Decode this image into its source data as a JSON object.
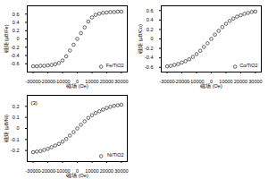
{
  "chart_data": [
    {
      "type": "scatter",
      "xlabel": "磁场 (Oe)",
      "ylabel": "磁矩 (μB/Fe)",
      "x": [
        -30000,
        -27500,
        -25000,
        -22500,
        -20000,
        -17500,
        -15000,
        -12500,
        -10000,
        -7500,
        -5000,
        -2500,
        0,
        2500,
        5000,
        7500,
        10000,
        12500,
        15000,
        17500,
        20000,
        22500,
        25000,
        27500,
        30000
      ],
      "series": [
        {
          "name": "Fe/TiO2",
          "color": "#000000",
          "marker": "circle",
          "values": [
            -0.66,
            -0.66,
            -0.65,
            -0.65,
            -0.64,
            -0.63,
            -0.61,
            -0.58,
            -0.52,
            -0.42,
            -0.28,
            -0.14,
            0.0,
            0.14,
            0.28,
            0.42,
            0.52,
            0.58,
            0.61,
            0.63,
            0.64,
            0.65,
            0.65,
            0.66,
            0.66
          ]
        }
      ],
      "xlim": [
        -34000,
        34000
      ],
      "xticks": [
        -30000,
        -20000,
        -10000,
        0,
        10000,
        20000,
        30000
      ],
      "ylim": [
        -0.8,
        0.8
      ],
      "yticks": [
        -0.6,
        -0.4,
        -0.2,
        0,
        0.2,
        0.4,
        0.6
      ],
      "legend": "lower right"
    },
    {
      "type": "scatter",
      "xlabel": "磁场 (Oe)",
      "ylabel": "磁矩 (μB/Co)",
      "x": [
        -30000,
        -27500,
        -25000,
        -22500,
        -20000,
        -17500,
        -15000,
        -12500,
        -10000,
        -7500,
        -5000,
        -2500,
        0,
        2500,
        5000,
        7500,
        10000,
        12500,
        15000,
        17500,
        20000,
        22500,
        25000,
        27500,
        30000
      ],
      "series": [
        {
          "name": "Co/TiO2",
          "color": "#000000",
          "marker": "circle",
          "values": [
            -0.58,
            -0.57,
            -0.55,
            -0.53,
            -0.5,
            -0.47,
            -0.43,
            -0.38,
            -0.32,
            -0.25,
            -0.17,
            -0.09,
            0.0,
            0.09,
            0.17,
            0.25,
            0.32,
            0.38,
            0.43,
            0.47,
            0.5,
            0.53,
            0.55,
            0.57,
            0.58
          ]
        }
      ],
      "xlim": [
        -34000,
        34000
      ],
      "xticks": [
        -30000,
        -20000,
        -10000,
        0,
        10000,
        20000,
        30000
      ],
      "ylim": [
        -0.7,
        0.7
      ],
      "yticks": [
        -0.6,
        -0.4,
        -0.2,
        0,
        0.2,
        0.4,
        0.6
      ],
      "legend": "lower right"
    },
    {
      "type": "scatter",
      "xlabel": "磁场 (Oe)",
      "ylabel": "磁矩 (μB/Ni)",
      "annotation": "(3)",
      "x": [
        -30000,
        -27500,
        -25000,
        -22500,
        -20000,
        -17500,
        -15000,
        -12500,
        -10000,
        -7500,
        -5000,
        -2500,
        0,
        2500,
        5000,
        7500,
        10000,
        12500,
        15000,
        17500,
        20000,
        22500,
        25000,
        27500,
        30000
      ],
      "series": [
        {
          "name": "Ni/TiO2",
          "color": "#000000",
          "marker": "circle",
          "values": [
            -0.215,
            -0.21,
            -0.205,
            -0.195,
            -0.185,
            -0.17,
            -0.155,
            -0.14,
            -0.12,
            -0.095,
            -0.065,
            -0.033,
            0.0,
            0.033,
            0.065,
            0.095,
            0.12,
            0.14,
            0.155,
            0.17,
            0.185,
            0.195,
            0.205,
            0.21,
            0.215
          ]
        }
      ],
      "xlim": [
        -34000,
        34000
      ],
      "xticks": [
        -30000,
        -20000,
        -10000,
        0,
        10000,
        20000,
        30000
      ],
      "ylim": [
        -0.3,
        0.3
      ],
      "yticks": [
        -0.2,
        -0.1,
        0,
        0.1,
        0.2
      ],
      "legend": "lower right"
    }
  ]
}
